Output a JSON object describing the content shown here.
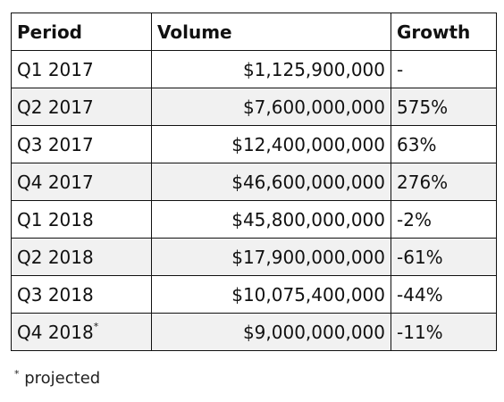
{
  "table": {
    "headers": [
      "Period",
      "Volume",
      "Growth"
    ],
    "rows": [
      {
        "period": "Q1 2017",
        "marker": "",
        "volume": "$1,125,900,000",
        "growth": "-"
      },
      {
        "period": "Q2 2017",
        "marker": "",
        "volume": "$7,600,000,000",
        "growth": "575%"
      },
      {
        "period": "Q3 2017",
        "marker": "",
        "volume": "$12,400,000,000",
        "growth": "63%"
      },
      {
        "period": "Q4 2017",
        "marker": "",
        "volume": "$46,600,000,000",
        "growth": "276%"
      },
      {
        "period": "Q1 2018",
        "marker": "",
        "volume": "$45,800,000,000",
        "growth": "-2%"
      },
      {
        "period": "Q2 2018",
        "marker": "",
        "volume": "$17,900,000,000",
        "growth": "-61%"
      },
      {
        "period": "Q3 2018",
        "marker": "",
        "volume": "$10,075,400,000",
        "growth": "-44%"
      },
      {
        "period": "Q4 2018",
        "marker": "*",
        "volume": "$9,000,000,000",
        "growth": "-11%"
      }
    ]
  },
  "footnote": {
    "marker": "*",
    "text": " projected"
  }
}
